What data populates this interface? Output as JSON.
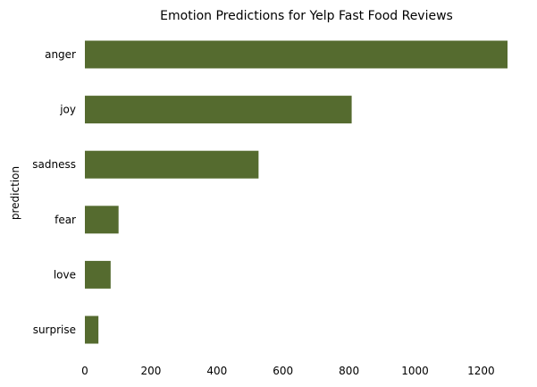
{
  "chart_data": {
    "type": "bar",
    "orientation": "horizontal",
    "title": "Emotion Predictions for Yelp Fast Food Reviews",
    "xlabel": "",
    "ylabel": "prediction",
    "categories": [
      "anger",
      "joy",
      "sadness",
      "fear",
      "love",
      "surprise"
    ],
    "values": [
      1280,
      808,
      526,
      102,
      78,
      41
    ],
    "xlim": [
      0,
      1280
    ],
    "xticks": [
      0,
      200,
      400,
      600,
      800,
      1000,
      1200
    ],
    "grid": false,
    "legend": "none",
    "bar_color": "#556b2f"
  }
}
